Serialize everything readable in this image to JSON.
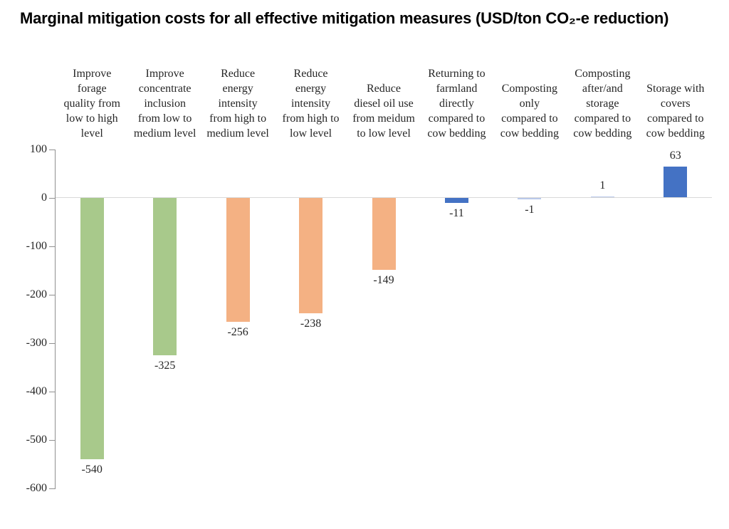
{
  "title": "Marginal mitigation costs for all effective mitigation measures (USD/ton CO₂-e reduction)",
  "chart_data": {
    "type": "bar",
    "title": "Marginal mitigation costs for all effective mitigation measures (USD/ton CO₂-e reduction)",
    "categories": [
      "Improve forage quality from low to high level",
      "Improve concentrate inclusion from low to medium level",
      "Reduce energy intensity from high to medium level",
      "Reduce energy intensity from high to low level",
      "Reduce diesel oil use from meidum to low level",
      "Returning to farmland directly compared to cow bedding",
      "Composting only compared to cow bedding",
      "Composting after/and storage compared to cow bedding",
      "Storage with covers compared to cow bedding"
    ],
    "label_lines": [
      [
        "Improve",
        "forage",
        "quality from",
        "low to high",
        "level"
      ],
      [
        "Improve",
        "concentrate",
        "inclusion",
        "from low to",
        "medium level"
      ],
      [
        "Reduce",
        "energy",
        "intensity",
        "from high to",
        "medium level"
      ],
      [
        "Reduce",
        "energy",
        "intensity",
        "from high to",
        "low level"
      ],
      [
        "Reduce",
        "diesel oil use",
        "from meidum",
        "to low level"
      ],
      [
        "Returning to",
        "farmland",
        "directly",
        "compared to",
        "cow bedding"
      ],
      [
        "Composting",
        "only",
        "compared to",
        "cow bedding"
      ],
      [
        "Composting",
        "after/and",
        "storage",
        "compared to",
        "cow bedding"
      ],
      [
        "Storage with",
        "covers",
        "compared to",
        "cow bedding"
      ]
    ],
    "values": [
      -540,
      -325,
      -256,
      -238,
      -149,
      -11,
      -1,
      1,
      63
    ],
    "bar_color_keys": [
      "green",
      "green",
      "orange",
      "orange",
      "orange",
      "blue",
      "lightblue",
      "lightblue",
      "blue"
    ],
    "colors": {
      "green": "#a8c98b",
      "orange": "#f4b183",
      "blue": "#4472c4",
      "lightblue": "#b9c9ea",
      "axis": "#909090",
      "zero_gridline": "#d8d8d8",
      "text": "#262626"
    },
    "xlabel": "",
    "ylabel": "",
    "ylim": [
      -600,
      100
    ],
    "yticks": [
      100,
      0,
      -100,
      -200,
      -300,
      -400,
      -500,
      -600
    ],
    "grid": "zero-line-only",
    "legend": "none"
  }
}
